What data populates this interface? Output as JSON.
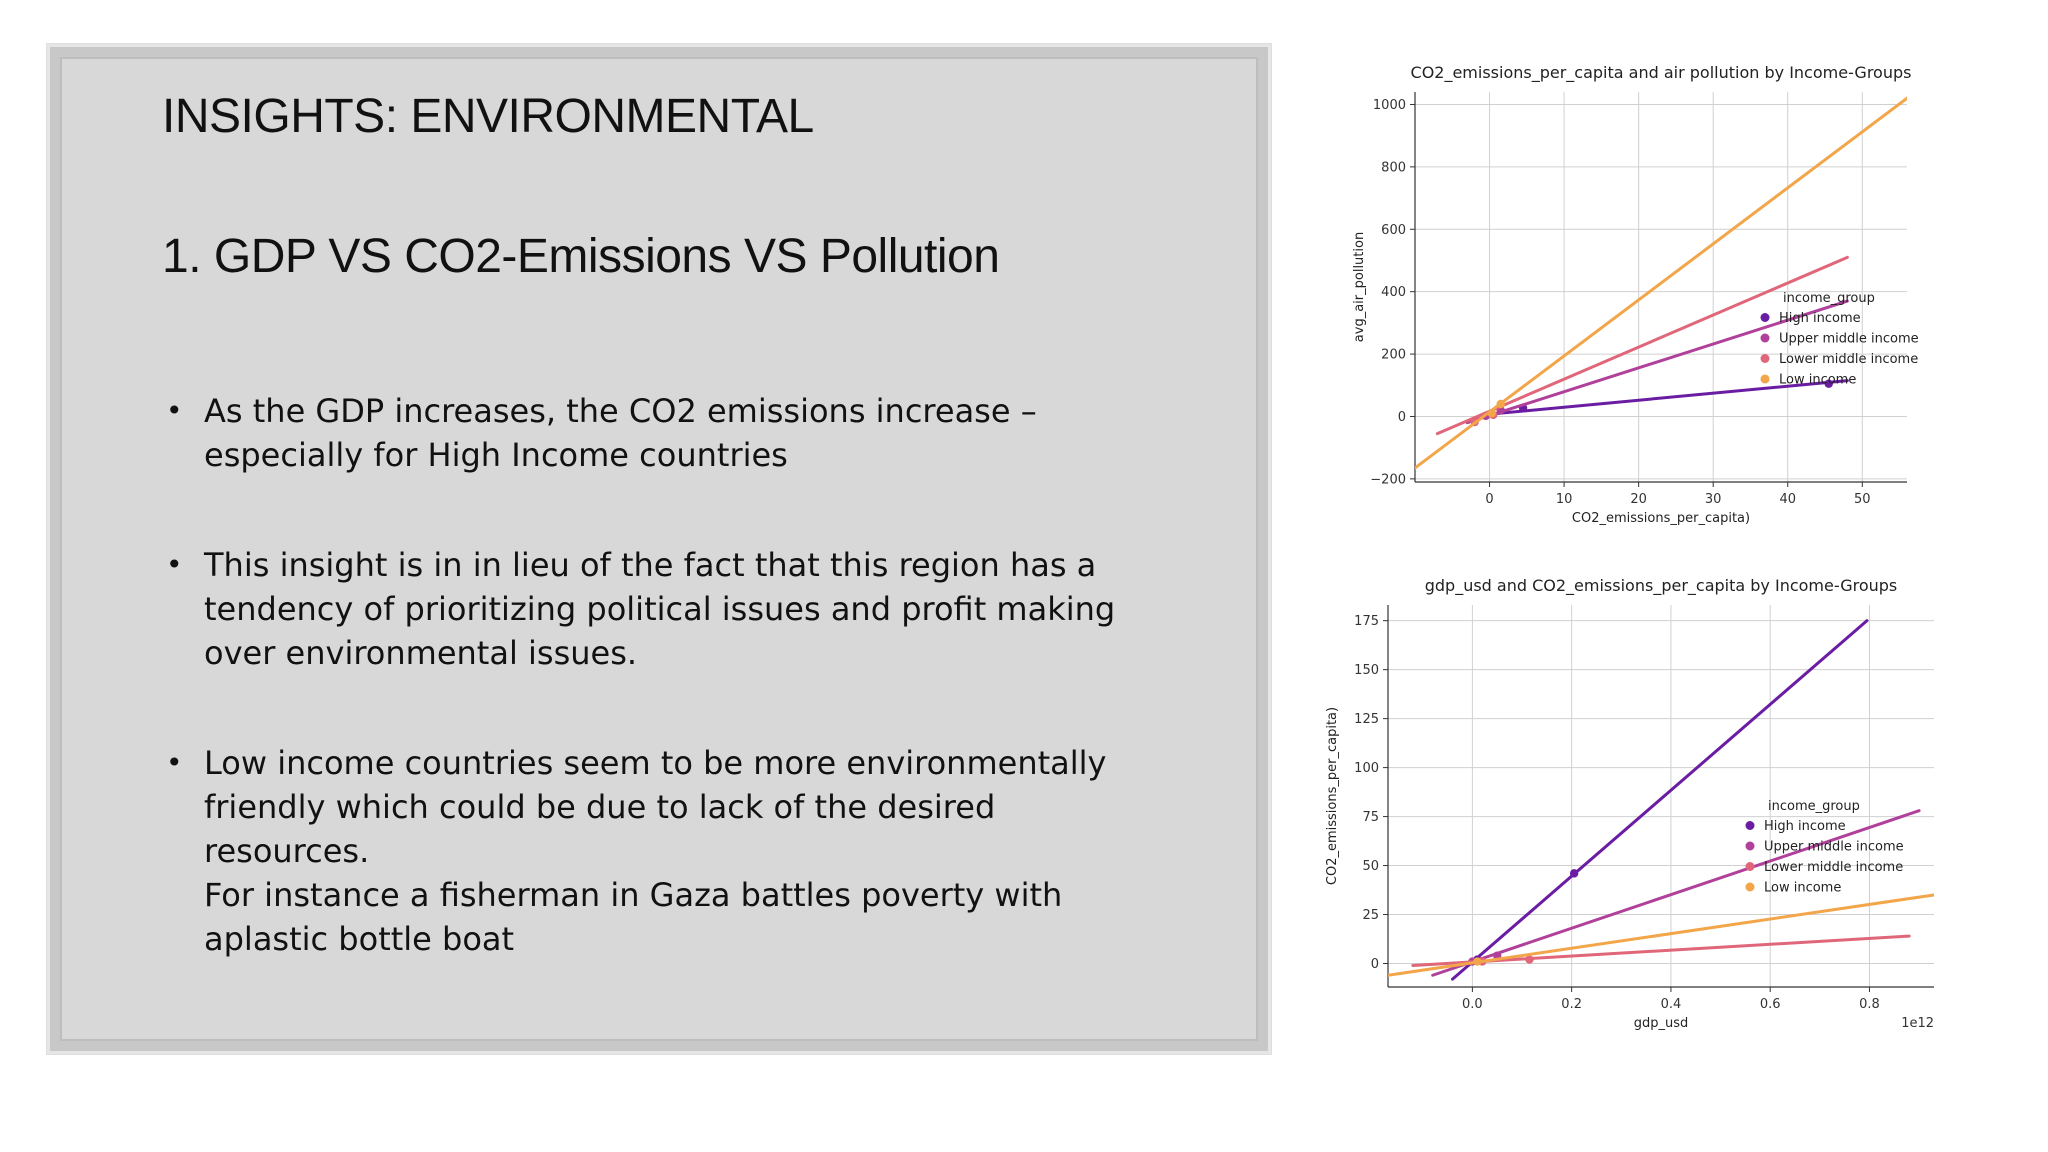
{
  "slide": {
    "title": "INSIGHTS: ENVIRONMENTAL",
    "subtitle": "1. GDP VS CO2-Emissions VS Pollution",
    "bullets": [
      "As the GDP increases, the CO2 emissions increase –\nespecially for High Income countries",
      "This insight is in in lieu of the fact that this region has a\ntendency of prioritizing political issues and profit making\nover environmental issues.",
      "Low income countries seem to be more environmentally\nfriendly which could be due to lack of the desired\nresources.\nFor instance a fisherman in Gaza battles poverty with\naplastic bottle boat"
    ]
  },
  "chart_data": [
    {
      "type": "scatter",
      "title": "CO2_emissions_per_capita and air pollution by Income-Groups",
      "xlabel": "CO2_emissions_per_capita)",
      "ylabel": "avg_air_pollution",
      "xlim": [
        -10,
        56
      ],
      "ylim": [
        -210,
        1040
      ],
      "xticks": [
        0,
        10,
        20,
        30,
        40,
        50
      ],
      "yticks": [
        -200,
        0,
        200,
        400,
        600,
        800,
        1000
      ],
      "ytick_labels": [
        "−200",
        "0",
        "200",
        "400",
        "600",
        "800",
        "1000"
      ],
      "grid": true,
      "legend": {
        "title": "income_group",
        "placement": "center-right",
        "entries": [
          "High income",
          "Upper middle income",
          "Lower middle income",
          "Low income"
        ]
      },
      "series": [
        {
          "name": "High income",
          "color": "#6a1ca3",
          "points": [
            [
              45.5,
              105
            ],
            [
              4.5,
              27
            ]
          ],
          "fit_line": [
            [
              -1,
              5
            ],
            [
              48,
              115
            ]
          ]
        },
        {
          "name": "Upper middle income",
          "color": "#b0409a",
          "points": [
            [
              1.5,
              20
            ],
            [
              -0.5,
              2
            ]
          ],
          "fit_line": [
            [
              -3,
              -20
            ],
            [
              48,
              370
            ]
          ]
        },
        {
          "name": "Lower middle income",
          "color": "#e0667a",
          "points": [
            [
              -2,
              -18
            ],
            [
              0.5,
              5
            ]
          ],
          "fit_line": [
            [
              -7,
              -55
            ],
            [
              48,
              510
            ]
          ]
        },
        {
          "name": "Low income",
          "color": "#f3a54a",
          "points": [
            [
              1.5,
              40
            ],
            [
              0.3,
              10
            ]
          ],
          "fit_line": [
            [
              -10,
              -165
            ],
            [
              56,
              1020
            ]
          ]
        }
      ]
    },
    {
      "type": "scatter",
      "title": "gdp_usd and CO2_emissions_per_capita by Income-Groups",
      "xlabel": "gdp_usd",
      "ylabel": "CO2_emissions_per_capita)",
      "xlim": [
        -0.17,
        0.93
      ],
      "ylim": [
        -12,
        183
      ],
      "xticks": [
        0.0,
        0.2,
        0.4,
        0.6,
        0.8
      ],
      "xtick_labels": [
        "0.0",
        "0.2",
        "0.4",
        "0.6",
        "0.8"
      ],
      "yticks": [
        0,
        25,
        50,
        75,
        100,
        125,
        150,
        175
      ],
      "x_scale_label": "1e12",
      "grid": true,
      "legend": {
        "title": "income_group",
        "placement": "center-right",
        "entries": [
          "High income",
          "Upper middle income",
          "Lower middle income",
          "Low income"
        ]
      },
      "series": [
        {
          "name": "High income",
          "color": "#6a1ca3",
          "points": [
            [
              0.205,
              46
            ],
            [
              0.01,
              2
            ]
          ],
          "fit_line": [
            [
              -0.04,
              -8
            ],
            [
              0.795,
              175
            ]
          ]
        },
        {
          "name": "Upper middle income",
          "color": "#b0409a",
          "points": [
            [
              0.05,
              4
            ],
            [
              0.0,
              1
            ]
          ],
          "fit_line": [
            [
              -0.08,
              -6
            ],
            [
              0.9,
              78
            ]
          ]
        },
        {
          "name": "Lower middle income",
          "color": "#e0667a",
          "points": [
            [
              0.115,
              2
            ],
            [
              0.02,
              1
            ]
          ],
          "fit_line": [
            [
              -0.12,
              -1
            ],
            [
              0.88,
              14
            ]
          ]
        },
        {
          "name": "Low income",
          "color": "#f3a54a",
          "points": [
            [
              0.01,
              1
            ]
          ],
          "fit_line": [
            [
              -0.17,
              -6
            ],
            [
              0.93,
              35
            ]
          ]
        }
      ]
    }
  ]
}
